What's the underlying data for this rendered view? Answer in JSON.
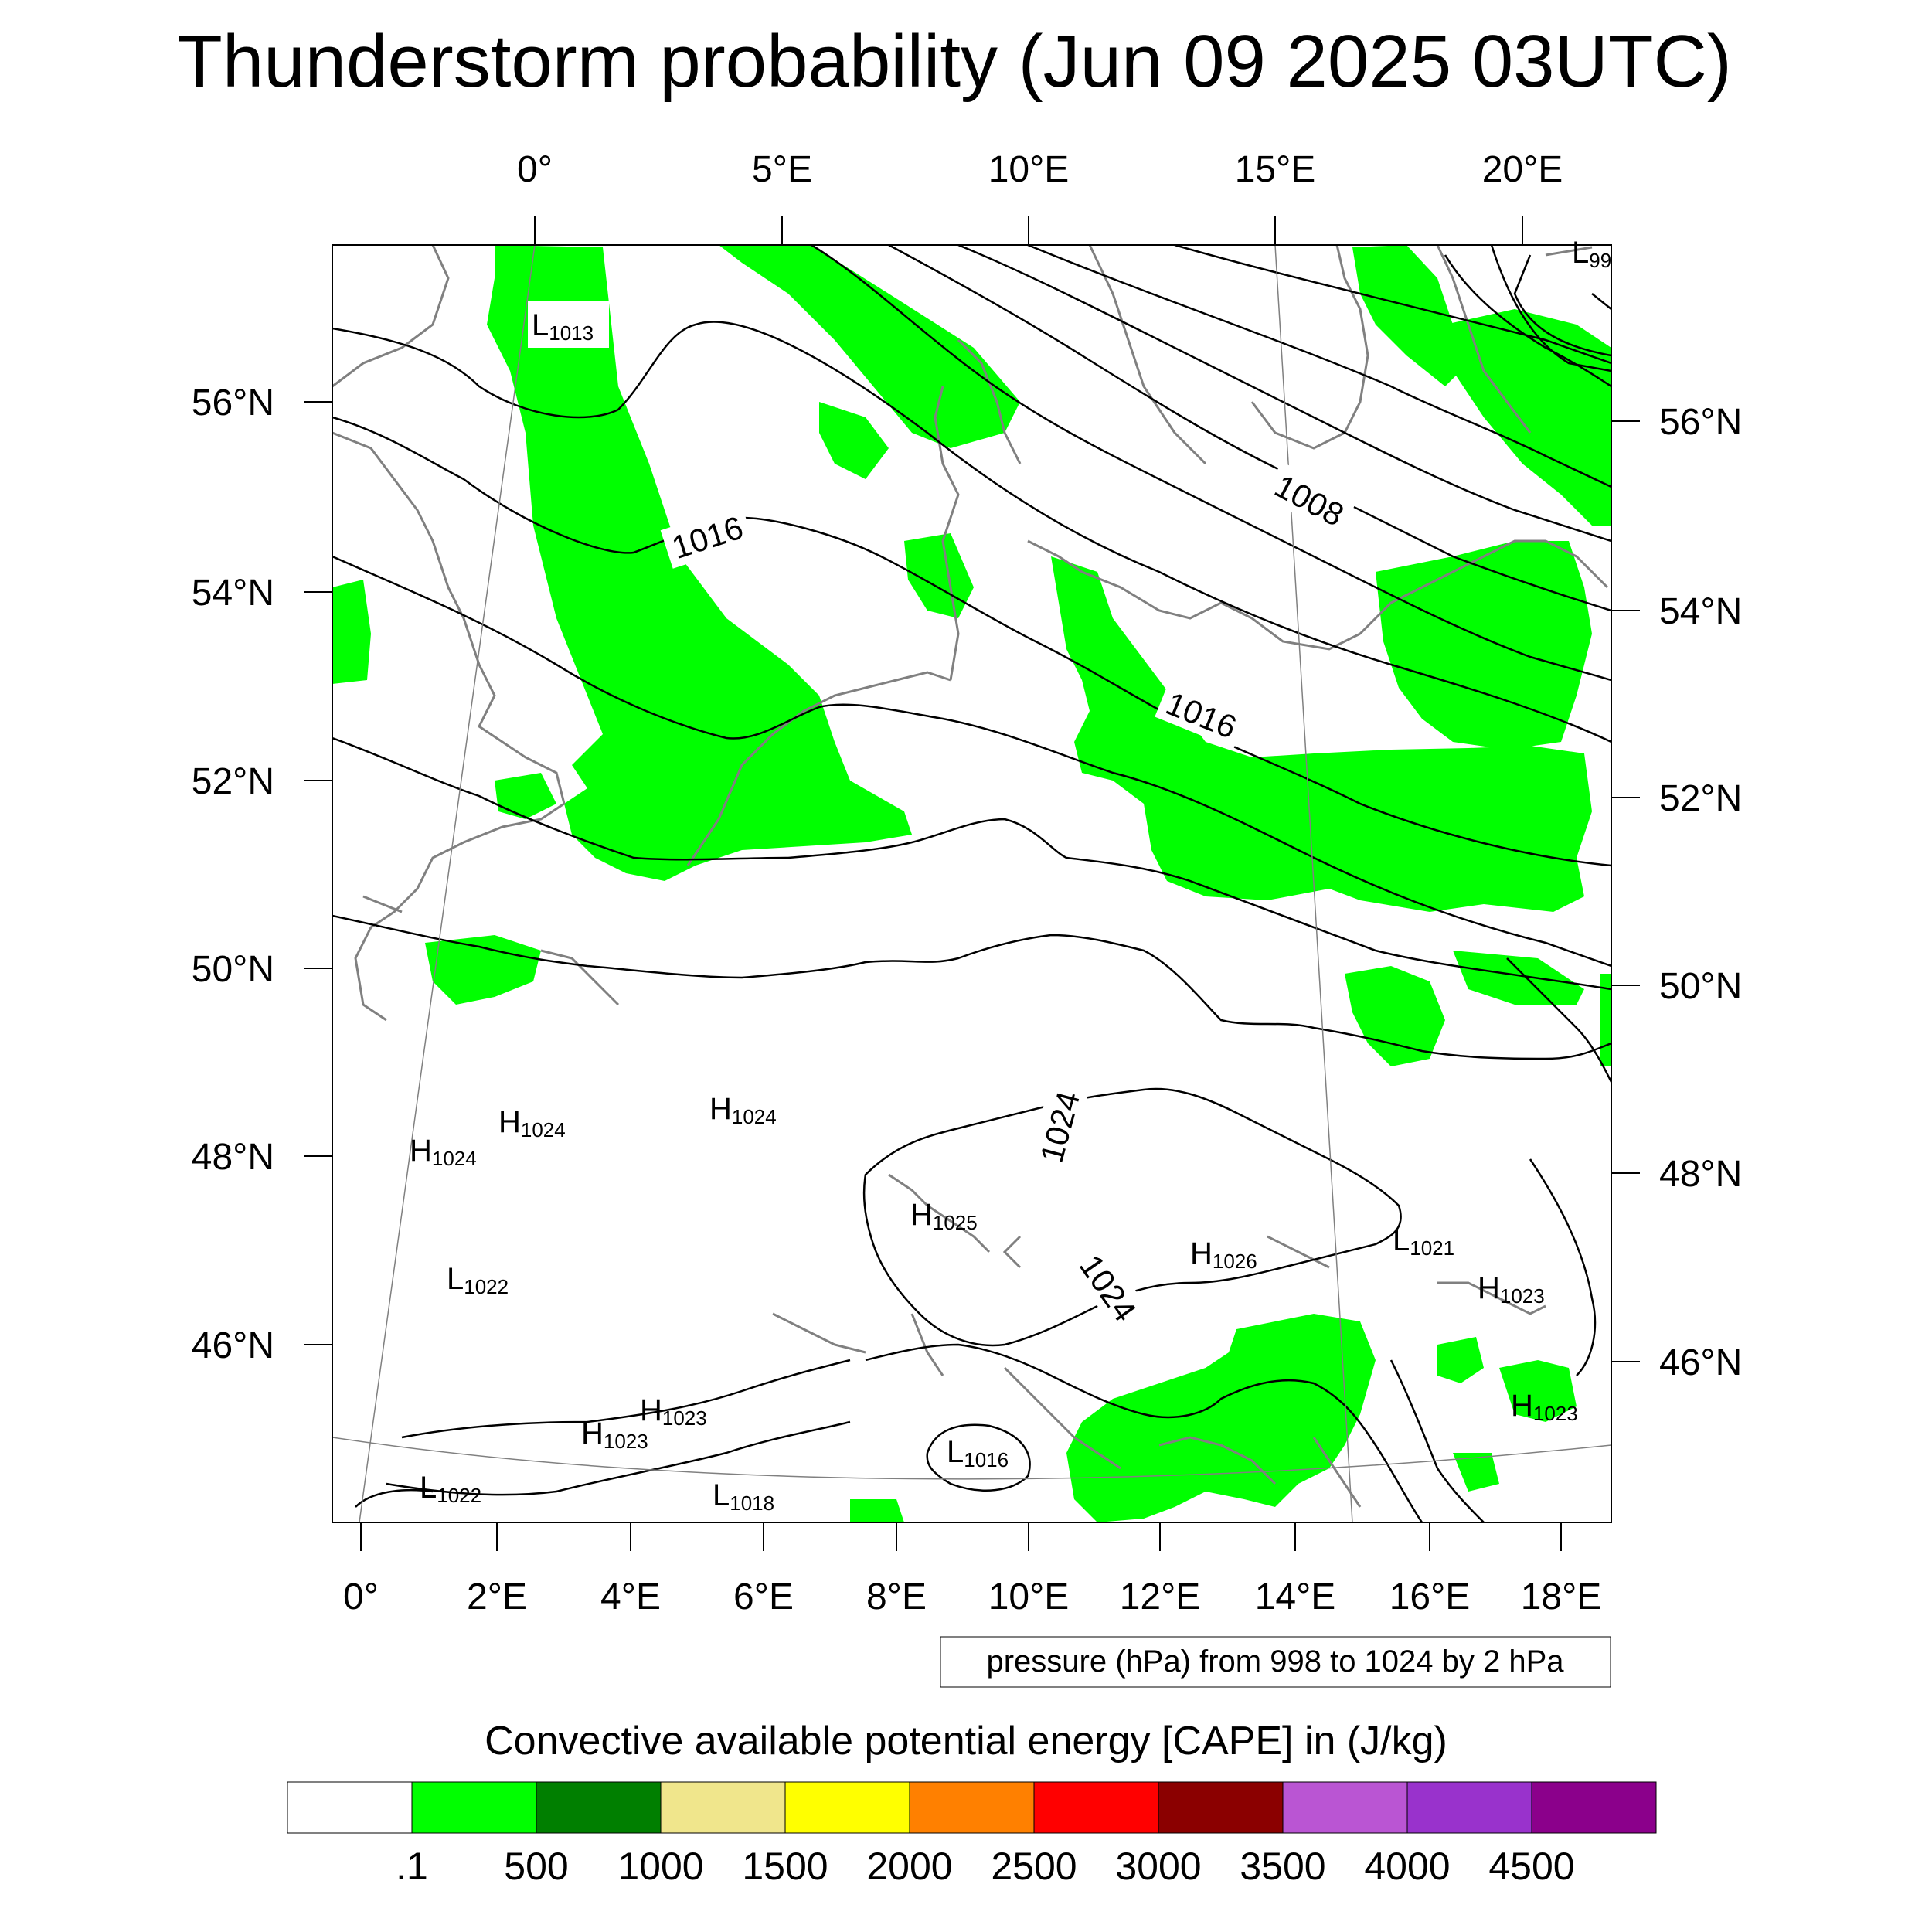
{
  "title": "Thunderstorm probability (Jun 09 2025 03UTC)",
  "top_lon_labels": [
    "0°",
    "5°E",
    "10°E",
    "15°E",
    "20°E"
  ],
  "bottom_lon_labels": [
    "0°",
    "2°E",
    "4°E",
    "6°E",
    "8°E",
    "10°E",
    "12°E",
    "14°E",
    "16°E",
    "18°E"
  ],
  "left_lat_labels": [
    "56°N",
    "54°N",
    "52°N",
    "50°N",
    "48°N",
    "46°N"
  ],
  "right_lat_labels": [
    "56°N",
    "54°N",
    "52°N",
    "50°N",
    "48°N",
    "46°N"
  ],
  "contour_labels": [
    "1016",
    "1016",
    "1008",
    "1024",
    "1024"
  ],
  "pressure_centers": [
    {
      "type": "L",
      "value": "1013"
    },
    {
      "type": "L",
      "value": "99"
    },
    {
      "type": "H",
      "value": "1024"
    },
    {
      "type": "H",
      "value": "1024"
    },
    {
      "type": "H",
      "value": "1024"
    },
    {
      "type": "H",
      "value": "1025"
    },
    {
      "type": "L",
      "value": "1022"
    },
    {
      "type": "H",
      "value": "1026"
    },
    {
      "type": "L",
      "value": "1021"
    },
    {
      "type": "H",
      "value": "1023"
    },
    {
      "type": "H",
      "value": "1023"
    },
    {
      "type": "H",
      "value": "1023"
    },
    {
      "type": "H",
      "value": "1023"
    },
    {
      "type": "L",
      "value": "1016"
    },
    {
      "type": "L",
      "value": "1022"
    },
    {
      "type": "L",
      "value": "1018"
    }
  ],
  "contour_info": "pressure (hPa) from 998 to 1024 by 2 hPa",
  "colorbar": {
    "title": "Convective available potential energy [CAPE] in (J/kg)",
    "labels": [
      ".1",
      "500",
      "1000",
      "1500",
      "2000",
      "2500",
      "3000",
      "3500",
      "4000",
      "4500"
    ],
    "colors": [
      "#ffffff",
      "#00ff00",
      "#007f00",
      "#f0e68c",
      "#ffff00",
      "#ff8000",
      "#ff0000",
      "#8b0000",
      "#ba55d3",
      "#9932cc",
      "#8b008b"
    ]
  },
  "colors": {
    "cape_fill": "#00ff00",
    "coast": "#808080",
    "isobar": "#000000"
  }
}
